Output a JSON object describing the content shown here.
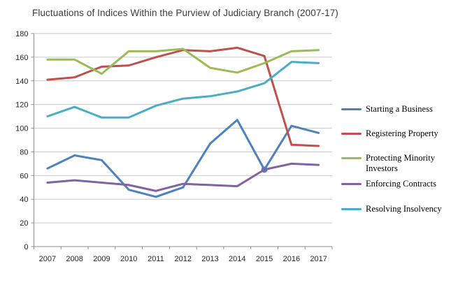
{
  "chart_data": {
    "type": "line",
    "title": "Fluctuations of Indices Within the Purview of Judiciary Branch (2007-17)",
    "x": [
      2007,
      2008,
      2009,
      2010,
      2011,
      2012,
      2013,
      2014,
      2015,
      2016,
      2017
    ],
    "series": [
      {
        "name": "Starting a Business",
        "color": "#4F81BD",
        "values": [
          66,
          77,
          73,
          48,
          42,
          50,
          87,
          107,
          65,
          102,
          96
        ],
        "marker_year": 2015
      },
      {
        "name": "Registering Property",
        "color": "#C0504D",
        "values": [
          141,
          143,
          152,
          153,
          160,
          166,
          165,
          168,
          161,
          86,
          85
        ]
      },
      {
        "name": "Protecting Minority Investors",
        "color": "#9BBB59",
        "values": [
          158,
          158,
          146,
          165,
          165,
          167,
          151,
          147,
          155,
          165,
          166
        ]
      },
      {
        "name": "Enforcing Contracts",
        "color": "#8064A2",
        "values": [
          54,
          56,
          54,
          52,
          47,
          53,
          52,
          51,
          65,
          70,
          69
        ]
      },
      {
        "name": "Resolving Insolvency",
        "color": "#4BACC6",
        "values": [
          110,
          118,
          109,
          109,
          119,
          125,
          127,
          131,
          138,
          156,
          155
        ]
      }
    ],
    "ylim": [
      0,
      180
    ],
    "ytick_step": 20,
    "yticks": [
      0,
      20,
      40,
      60,
      80,
      100,
      120,
      140,
      160,
      180
    ],
    "grid": "horizontal",
    "legend_position": "right",
    "xlabel": "",
    "ylabel": "",
    "colors": {
      "gridline": "#C9C9C9",
      "axis": "#8C8C8C",
      "tick_text": "#262626",
      "title_text": "#3a3a3a",
      "background": "#ffffff"
    }
  }
}
